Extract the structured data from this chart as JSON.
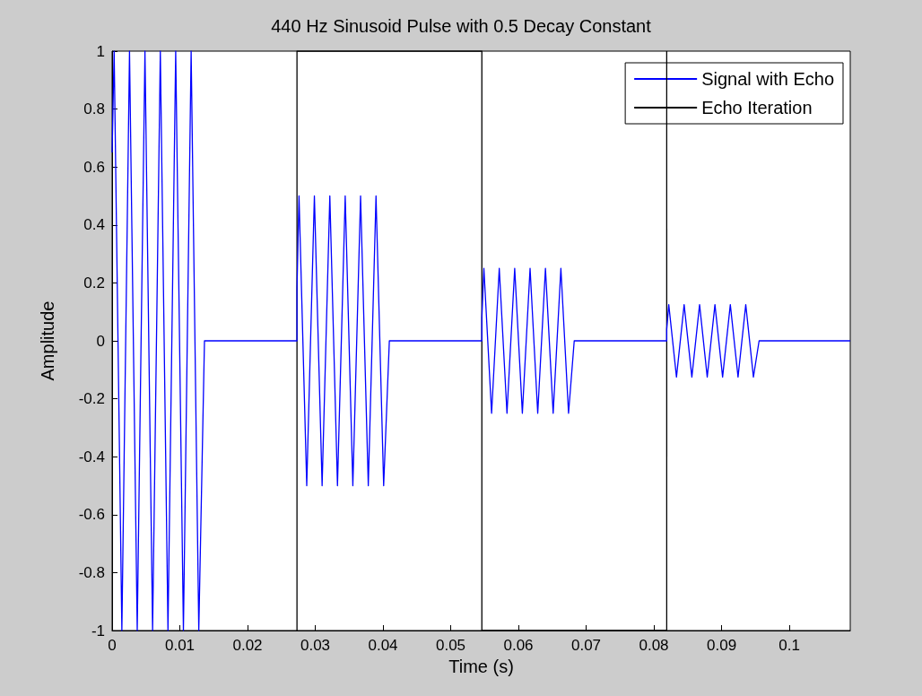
{
  "chart_data": {
    "type": "line",
    "title": "440 Hz Sinusoid Pulse with 0.5 Decay Constant",
    "xlabel": "Time (s)",
    "ylabel": "Amplitude",
    "xlim": [
      0,
      0.109
    ],
    "xticks": [
      0,
      0.01,
      0.02,
      0.03,
      0.04,
      0.05,
      0.06,
      0.07,
      0.08,
      0.09,
      0.1
    ],
    "ylim": [
      -1,
      1
    ],
    "yticks": [
      -1,
      -0.8,
      -0.6,
      -0.4,
      -0.2,
      0,
      0.2,
      0.4,
      0.6,
      0.8,
      1
    ],
    "grid": false,
    "legend": "top right",
    "marker": "none",
    "line_style": "solid",
    "series": [
      {
        "name": "Signal with Echo",
        "color": "#0000ff",
        "x": [
          0,
          0.0003,
          0.00144,
          0.00257,
          0.00371,
          0.00485,
          0.00598,
          0.00712,
          0.00825,
          0.00939,
          0.01053,
          0.01167,
          0.0128,
          0.01364,
          0.0273,
          0.0273,
          0.0276,
          0.02874,
          0.02987,
          0.03101,
          0.03215,
          0.03328,
          0.03442,
          0.03555,
          0.03669,
          0.03783,
          0.03897,
          0.0401,
          0.04094,
          0.0546,
          0.0546,
          0.0549,
          0.05604,
          0.05717,
          0.05831,
          0.05945,
          0.06058,
          0.06172,
          0.06285,
          0.06399,
          0.06513,
          0.06627,
          0.0674,
          0.06824,
          0.0819,
          0.0819,
          0.0822,
          0.08334,
          0.08447,
          0.08561,
          0.08675,
          0.08788,
          0.08902,
          0.09015,
          0.09129,
          0.09243,
          0.09357,
          0.0947,
          0.09554,
          0.109
        ],
        "values": [
          0.65,
          1,
          -1,
          1,
          -1,
          1,
          -1,
          1,
          -1,
          1,
          -1,
          1,
          -1,
          0,
          0,
          0.18,
          0.5,
          -0.5,
          0.5,
          -0.5,
          0.5,
          -0.5,
          0.5,
          -0.5,
          0.5,
          -0.5,
          0.5,
          -0.5,
          0,
          0,
          0.08,
          0.25,
          -0.25,
          0.25,
          -0.25,
          0.25,
          -0.25,
          0.25,
          -0.25,
          0.25,
          -0.25,
          0.25,
          -0.25,
          0,
          0,
          0.04,
          0.125,
          -0.125,
          0.125,
          -0.125,
          0.125,
          -0.125,
          0.125,
          -0.125,
          0.125,
          -0.125,
          0.125,
          -0.125,
          0,
          0
        ]
      },
      {
        "name": "Echo Iteration",
        "color": "#000000",
        "x": [
          0.0273,
          0.0273,
          0.0546,
          0.0546,
          0.0819,
          0.0819
        ],
        "values": [
          -1,
          1,
          1,
          -1,
          -1,
          1
        ]
      }
    ]
  }
}
